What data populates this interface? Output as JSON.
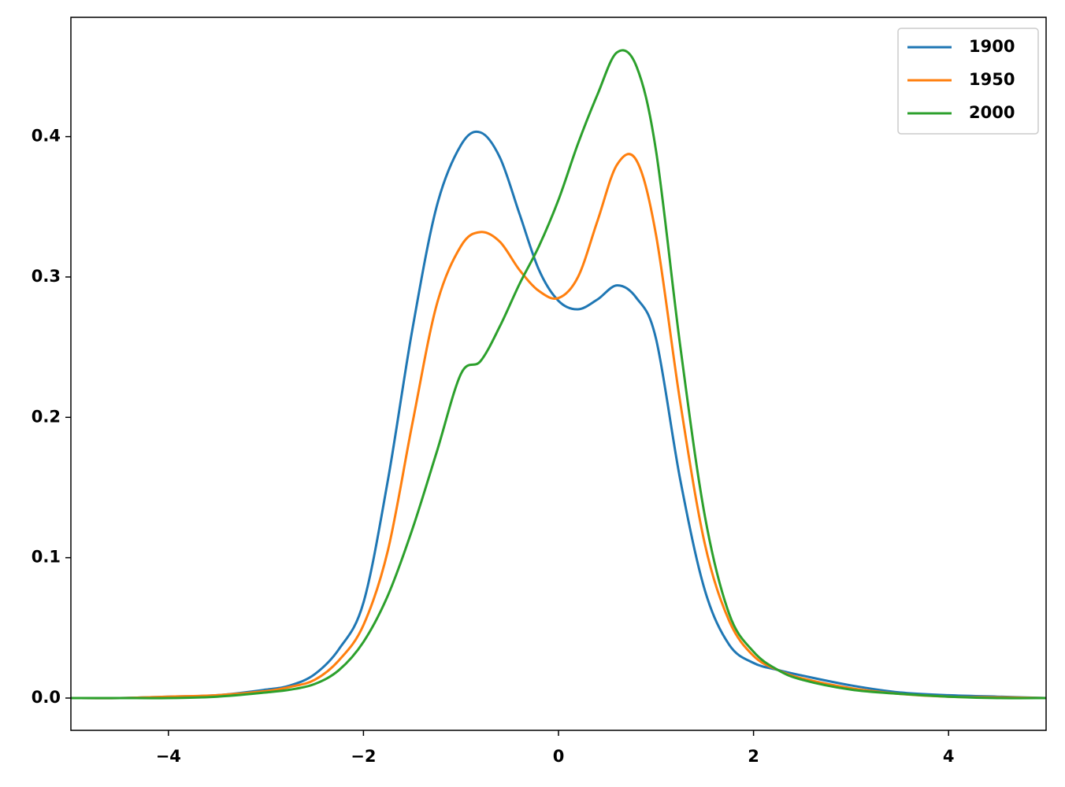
{
  "chart_data": {
    "type": "line",
    "x": [
      -5,
      -4.5,
      -4,
      -3.5,
      -3,
      -2.75,
      -2.5,
      -2.25,
      -2,
      -1.75,
      -1.5,
      -1.25,
      -1,
      -0.8,
      -0.6,
      -0.4,
      -0.2,
      0,
      0.2,
      0.4,
      0.6,
      0.8,
      1,
      1.25,
      1.5,
      1.75,
      2,
      2.25,
      2.5,
      3,
      3.5,
      4,
      4.5,
      5
    ],
    "series": [
      {
        "name": "1900",
        "color": "#1f77b4",
        "values": [
          0,
          0,
          0.001,
          0.002,
          0.006,
          0.009,
          0.017,
          0.035,
          0.068,
          0.155,
          0.262,
          0.35,
          0.394,
          0.403,
          0.385,
          0.345,
          0.305,
          0.283,
          0.277,
          0.284,
          0.294,
          0.285,
          0.256,
          0.155,
          0.077,
          0.038,
          0.025,
          0.02,
          0.016,
          0.009,
          0.004,
          0.002,
          0.001,
          0
        ]
      },
      {
        "name": "1950",
        "color": "#ff7f0e",
        "values": [
          0,
          0,
          0.001,
          0.002,
          0.005,
          0.008,
          0.013,
          0.027,
          0.052,
          0.105,
          0.195,
          0.28,
          0.322,
          0.332,
          0.325,
          0.305,
          0.29,
          0.285,
          0.3,
          0.34,
          0.38,
          0.383,
          0.33,
          0.21,
          0.11,
          0.055,
          0.03,
          0.02,
          0.014,
          0.007,
          0.003,
          0.001,
          0.0005,
          0
        ]
      },
      {
        "name": "2000",
        "color": "#2ca02c",
        "values": [
          0,
          0,
          0,
          0.001,
          0.004,
          0.006,
          0.01,
          0.02,
          0.04,
          0.073,
          0.12,
          0.175,
          0.231,
          0.24,
          0.265,
          0.295,
          0.322,
          0.355,
          0.395,
          0.43,
          0.46,
          0.45,
          0.39,
          0.25,
          0.13,
          0.06,
          0.033,
          0.02,
          0.013,
          0.006,
          0.003,
          0.001,
          0,
          0
        ]
      }
    ],
    "xlim": [
      -5,
      5
    ],
    "ylim": [
      -0.023,
      0.485
    ],
    "xticks": [
      {
        "value": -4,
        "label": "−4"
      },
      {
        "value": -2,
        "label": "−2"
      },
      0,
      2,
      4
    ],
    "yticks": [
      {
        "value": 0,
        "label": "0.0"
      },
      0.1,
      0.2,
      0.3,
      0.4
    ],
    "legend": "upper right"
  }
}
